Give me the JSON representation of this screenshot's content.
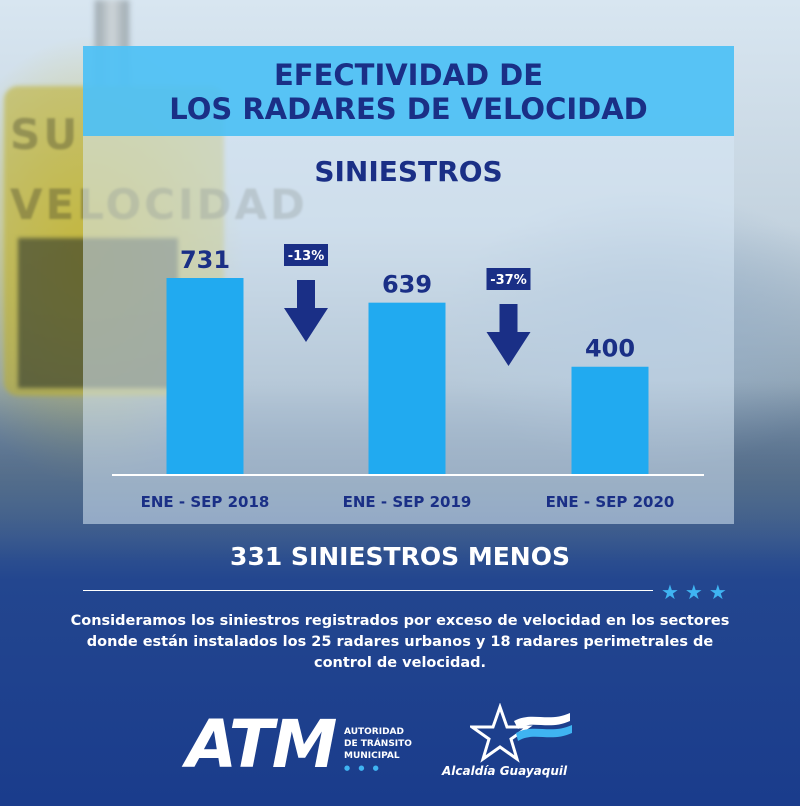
{
  "title_line1": "EFECTIVIDAD DE",
  "title_line2": "LOS RADARES DE VELOCIDAD",
  "chart_data": {
    "type": "bar",
    "title": "SINIESTROS",
    "categories": [
      "ENE - SEP 2018",
      "ENE - SEP 2019",
      "ENE - SEP 2020"
    ],
    "values": [
      731,
      639,
      400
    ],
    "changes": [
      "-13%",
      "-37%"
    ],
    "ylim": [
      0,
      731
    ],
    "bar_color": "#21aaf0",
    "grid": false
  },
  "total_text": "331 SINIESTROS MENOS",
  "stars": "★★★",
  "note": "Consideramos los siniestros registrados por exceso de velocidad en los sectores donde están instalados los 25 radares urbanos y 18 radares perimetrales de control de velocidad.",
  "logos": {
    "atm": "ATM",
    "atm_sub_line1": "AUTORIDAD",
    "atm_sub_line2": "DE TRÁNSITO",
    "atm_sub_line3": "MUNICIPAL",
    "alcaldia": "Alcaldía Guayaquil",
    "alcaldia_icon": "star-flag-icon"
  },
  "colors": {
    "primary_dark": "#1a2f86",
    "accent_blue": "#21aaf0",
    "title_band": "#46bef5"
  }
}
